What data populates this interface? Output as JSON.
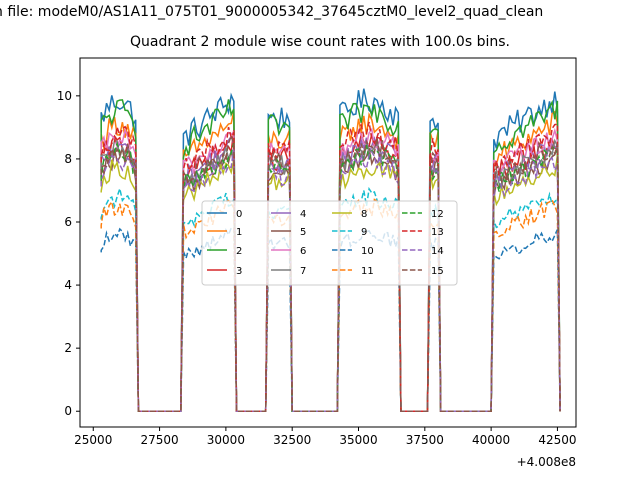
{
  "figure": {
    "suptitle": "n file: modeM0/AS1A11_075T01_9000005342_37645cztM0_level2_quad_clean",
    "title": "Quadrant 2 module wise count rates with 100.0s bins."
  },
  "chart_data": {
    "type": "line",
    "title": "Quadrant 2 module wise count rates with 100.0s bins.",
    "xlabel": "",
    "ylabel": "",
    "x_offset_label": "+4.008e8",
    "xlim": [
      24500,
      43200
    ],
    "ylim": [
      -0.5,
      11.2
    ],
    "xticks": [
      25000,
      27500,
      30000,
      32500,
      35000,
      37500,
      40000,
      42500
    ],
    "xtick_labels": [
      "25000",
      "27500",
      "30000",
      "32500",
      "35000",
      "37500",
      "40000",
      "42500"
    ],
    "yticks": [
      0,
      2,
      4,
      6,
      8,
      10
    ],
    "ytick_labels": [
      "0",
      "2",
      "4",
      "6",
      "8",
      "10"
    ],
    "grid": false,
    "legend_position": "center",
    "segments": [
      {
        "start": 25300,
        "end": 26600,
        "shape": "mid-hump"
      },
      {
        "start": 28400,
        "end": 30300,
        "shape": "rising"
      },
      {
        "start": 31600,
        "end": 32400,
        "shape": "flat"
      },
      {
        "start": 34300,
        "end": 36500,
        "shape": "mid-hump"
      },
      {
        "start": 37700,
        "end": 38000,
        "shape": "flat"
      },
      {
        "start": 40100,
        "end": 42500,
        "shape": "rising"
      }
    ],
    "series": [
      {
        "name": "0",
        "color": "#1f77b4",
        "dash": "solid",
        "level": 9.3
      },
      {
        "name": "1",
        "color": "#ff7f0e",
        "dash": "solid",
        "level": 8.6
      },
      {
        "name": "2",
        "color": "#2ca02c",
        "dash": "solid",
        "level": 9.0
      },
      {
        "name": "3",
        "color": "#d62728",
        "dash": "solid",
        "level": 8.0
      },
      {
        "name": "4",
        "color": "#9467bd",
        "dash": "solid",
        "level": 7.9
      },
      {
        "name": "5",
        "color": "#8c564b",
        "dash": "solid",
        "level": 7.6
      },
      {
        "name": "6",
        "color": "#e377c2",
        "dash": "solid",
        "level": 8.2
      },
      {
        "name": "7",
        "color": "#7f7f7f",
        "dash": "solid",
        "level": 7.8
      },
      {
        "name": "8",
        "color": "#bcbd22",
        "dash": "solid",
        "level": 7.3
      },
      {
        "name": "9",
        "color": "#17becf",
        "dash": "dashed",
        "level": 6.4
      },
      {
        "name": "10",
        "color": "#1f77b4",
        "dash": "dashed",
        "level": 5.3
      },
      {
        "name": "11",
        "color": "#ff7f0e",
        "dash": "dashed",
        "level": 6.1
      },
      {
        "name": "12",
        "color": "#2ca02c",
        "dash": "dashed",
        "level": 7.7
      },
      {
        "name": "13",
        "color": "#d62728",
        "dash": "dashed",
        "level": 8.3
      },
      {
        "name": "14",
        "color": "#9467bd",
        "dash": "dashed",
        "level": 7.5
      },
      {
        "name": "15",
        "color": "#8c564b",
        "dash": "dashed",
        "level": 7.9
      }
    ]
  }
}
